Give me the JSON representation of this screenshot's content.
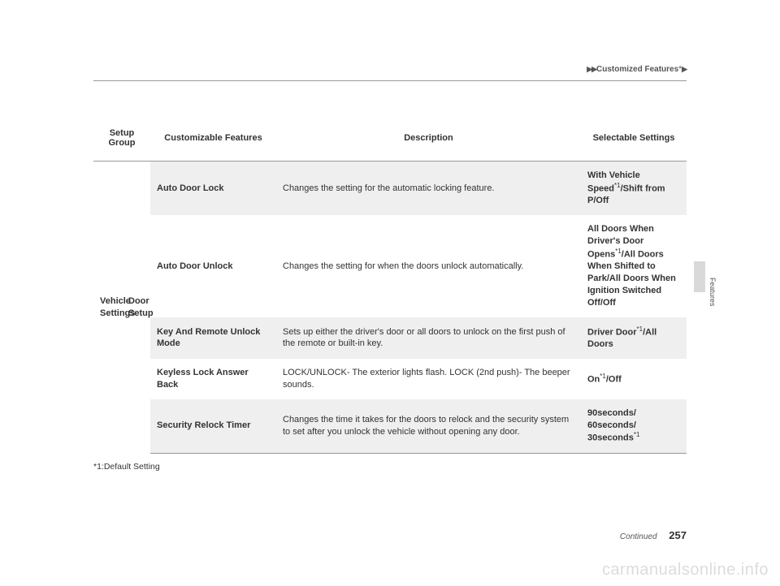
{
  "runningHead": {
    "triangles": "▶▶",
    "title": "Customized Features",
    "asterisk": "*",
    "tail": "▶"
  },
  "headers": {
    "group": "Setup Group",
    "features": "Customizable Features",
    "description": "Description",
    "settings": "Selectable Settings"
  },
  "groupLabel": "Vehicle Settings",
  "subLabel": "Door Setup",
  "rows": [
    {
      "feature": "Auto Door Lock",
      "description": "Changes the setting for the automatic locking feature.",
      "settingsHtml": "With Vehicle Speed<span class=\"sup\">*1</span>/Shift from P/Off",
      "shade": true
    },
    {
      "feature": "Auto Door Unlock",
      "description": "Changes the setting for when the doors unlock automatically.",
      "settingsHtml": "All Doors When Driver's Door Opens<span class=\"sup\">*1</span>/All Doors When Shifted to Park/All Doors When Ignition Switched Off/Off",
      "shade": false
    },
    {
      "feature": "Key And Remote Unlock Mode",
      "description": "Sets up either the driver's door or all doors to unlock on the first push of the remote or built-in key.",
      "settingsHtml": "Driver Door<span class=\"sup\">*1</span>/All Doors",
      "shade": true
    },
    {
      "feature": "Keyless Lock Answer Back",
      "description": "LOCK/UNLOCK- The exterior lights flash.\nLOCK (2nd push)- The beeper sounds.",
      "settingsHtml": "On<span class=\"sup\">*1</span>/Off",
      "shade": false
    },
    {
      "feature": "Security Relock Timer",
      "description": "Changes the time it takes for the doors to relock and the security system to set after you unlock the vehicle without opening any door.",
      "settingsHtml": "90seconds/\n60seconds/\n30seconds<span class=\"sup\">*1</span>",
      "shade": true
    }
  ],
  "footnote": "*1:Default Setting",
  "sideLabel": "Features",
  "footer": {
    "continued": "Continued",
    "page": "257"
  },
  "watermark": "carmanualsonline.info"
}
